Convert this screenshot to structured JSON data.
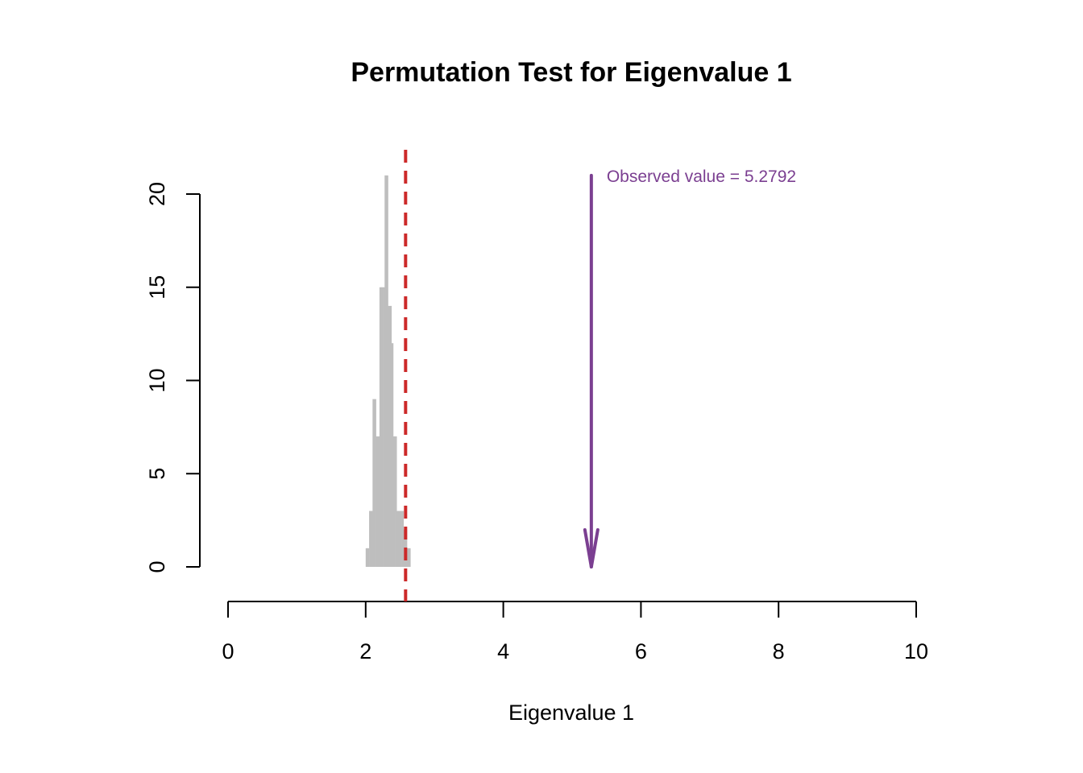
{
  "chart_data": {
    "type": "bar",
    "title": "Permutation Test for Eigenvalue 1",
    "xlabel": "Eigenvalue 1",
    "ylabel": "",
    "xlim": [
      0,
      10
    ],
    "ylim": [
      0,
      20
    ],
    "x_ticks": [
      "0",
      "2",
      "4",
      "6",
      "8",
      "10"
    ],
    "y_ticks": [
      "0",
      "5",
      "10",
      "15",
      "20"
    ],
    "bin_width": 0.025,
    "bins": [
      {
        "x0": 2.0,
        "count": 1
      },
      {
        "x0": 2.025,
        "count": 1
      },
      {
        "x0": 2.05,
        "count": 3
      },
      {
        "x0": 2.075,
        "count": 3
      },
      {
        "x0": 2.1,
        "count": 9
      },
      {
        "x0": 2.125,
        "count": 9
      },
      {
        "x0": 2.15,
        "count": 7
      },
      {
        "x0": 2.175,
        "count": 7
      },
      {
        "x0": 2.2,
        "count": 15
      },
      {
        "x0": 2.225,
        "count": 15
      },
      {
        "x0": 2.25,
        "count": 15
      },
      {
        "x0": 2.275,
        "count": 21
      },
      {
        "x0": 2.3,
        "count": 21
      },
      {
        "x0": 2.325,
        "count": 14
      },
      {
        "x0": 2.35,
        "count": 14
      },
      {
        "x0": 2.375,
        "count": 12
      },
      {
        "x0": 2.4,
        "count": 7
      },
      {
        "x0": 2.425,
        "count": 7
      },
      {
        "x0": 2.45,
        "count": 3
      },
      {
        "x0": 2.475,
        "count": 3
      },
      {
        "x0": 2.5,
        "count": 3
      },
      {
        "x0": 2.525,
        "count": 3
      },
      {
        "x0": 2.55,
        "count": 2
      },
      {
        "x0": 2.575,
        "count": 2
      },
      {
        "x0": 2.6,
        "count": 1
      },
      {
        "x0": 2.625,
        "count": 1
      }
    ],
    "reference_line": {
      "x": 2.58,
      "style": "dashed",
      "color": "#cc2929"
    },
    "observed": {
      "x": 5.2792,
      "arrow_top": 21,
      "arrow_bottom": 0,
      "label": "Observed value = 5.2792",
      "color": "#7b3f91"
    },
    "bar_color": "#bebebe",
    "grid": false
  }
}
